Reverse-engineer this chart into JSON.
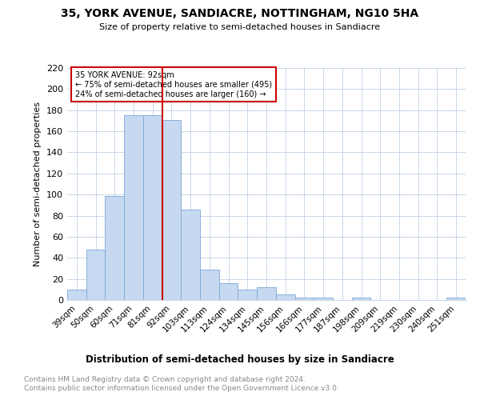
{
  "title": "35, YORK AVENUE, SANDIACRE, NOTTINGHAM, NG10 5HA",
  "subtitle": "Size of property relative to semi-detached houses in Sandiacre",
  "xlabel": "Distribution of semi-detached houses by size in Sandiacre",
  "ylabel": "Number of semi-detached properties",
  "categories": [
    "39sqm",
    "50sqm",
    "60sqm",
    "71sqm",
    "81sqm",
    "92sqm",
    "103sqm",
    "113sqm",
    "124sqm",
    "134sqm",
    "145sqm",
    "156sqm",
    "166sqm",
    "177sqm",
    "187sqm",
    "198sqm",
    "209sqm",
    "219sqm",
    "230sqm",
    "240sqm",
    "251sqm"
  ],
  "values": [
    10,
    48,
    99,
    175,
    175,
    171,
    86,
    29,
    16,
    10,
    12,
    5,
    2,
    2,
    0,
    2,
    0,
    0,
    0,
    0,
    2
  ],
  "bar_color": "#c6d9f0",
  "bar_edge_color": "#7da7d9",
  "highlight_index": 5,
  "red_line_label": "35 YORK AVENUE: 92sqm",
  "annotation_line1": "← 75% of semi-detached houses are smaller (495)",
  "annotation_line2": "24% of semi-detached houses are larger (160) →",
  "red_color": "#cc0000",
  "ylim": [
    0,
    220
  ],
  "yticks": [
    0,
    20,
    40,
    60,
    80,
    100,
    120,
    140,
    160,
    180,
    200,
    220
  ],
  "footer1": "Contains HM Land Registry data © Crown copyright and database right 2024.",
  "footer2": "Contains public sector information licensed under the Open Government Licence v3.0.",
  "bg_color": "#ffffff",
  "grid_color": "#c8d8e8"
}
